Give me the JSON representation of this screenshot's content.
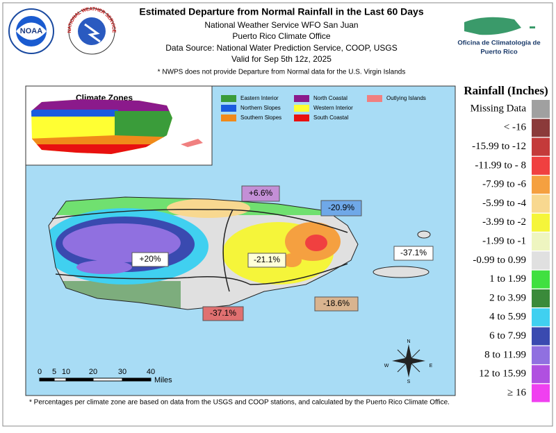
{
  "header": {
    "title": "Estimated Departure from Normal Rainfall in the Last 60 Days",
    "lines": [
      "National Weather Service WFO San Juan",
      "Puerto Rico Climate Office",
      "Data Source: National Water Prediction Service, COOP, USGS",
      "Valid for Sep 5th 12z, 2025"
    ],
    "note": "* NWPS does not provide Departure from Normal data for the U.S. Virgin Islands"
  },
  "logos": {
    "noaa": "NOAA",
    "nws": "NATIONAL WEATHER SERVICE",
    "climate_office": [
      "Oficina de Climatología de",
      "Puerto Rico"
    ]
  },
  "inset": {
    "title": "Climate Zones",
    "zones": [
      {
        "label": "Eastern Interior",
        "color": "#3a9c3a"
      },
      {
        "label": "Northern Slopes",
        "color": "#1a5be0"
      },
      {
        "label": "Southern Slopes",
        "color": "#f08a1a"
      },
      {
        "label": "North Coastal",
        "color": "#8b1a8b"
      },
      {
        "label": "Western Interior",
        "color": "#ffff33"
      },
      {
        "label": "South Coastal",
        "color": "#e81010"
      },
      {
        "label": "Outlying Islands",
        "color": "#f08080"
      }
    ]
  },
  "map": {
    "zone_labels": [
      "+6.6%",
      "-20.9%",
      "-37.1%",
      "+20%",
      "-21.1%",
      "-18.6%",
      "-37.1%"
    ],
    "scale": {
      "ticks": [
        "0",
        "5",
        "10",
        "20",
        "30",
        "40"
      ],
      "unit": "Miles"
    },
    "compass": [
      "N",
      "S",
      "E",
      "W"
    ]
  },
  "legend": {
    "title": "Rainfall (Inches)",
    "items": [
      {
        "label": "Missing Data",
        "color": "#a0a0a0"
      },
      {
        "label": "< -16",
        "color": "#8b3a3a"
      },
      {
        "label": "-15.99 to -12",
        "color": "#c43a3a"
      },
      {
        "label": "-11.99 to - 8",
        "color": "#f04040"
      },
      {
        "label": "-7.99 to -6",
        "color": "#f5a040"
      },
      {
        "label": "-5.99 to -4",
        "color": "#f8d890"
      },
      {
        "label": "-3.99 to -2",
        "color": "#f5f53a"
      },
      {
        "label": "-1.99 to -1",
        "color": "#eef5c0"
      },
      {
        "label": "-0.99 to 0.99",
        "color": "#e0e0e0"
      },
      {
        "label": "1 to 1.99",
        "color": "#40e040"
      },
      {
        "label": "2 to 3.99",
        "color": "#3a8a3a"
      },
      {
        "label": "4 to 5.99",
        "color": "#40d0f0"
      },
      {
        "label": "6 to 7.99",
        "color": "#3a4ab0"
      },
      {
        "label": "8 to 11.99",
        "color": "#9070e0"
      },
      {
        "label": "12 to 15.99",
        "color": "#b050e0"
      },
      {
        "label": "≥ 16",
        "color": "#f040f0"
      }
    ]
  },
  "footnote": "* Percentages per climate zone are based on data from the USGS and COOP stations, and calculated by the Puerto Rico Climate Office."
}
